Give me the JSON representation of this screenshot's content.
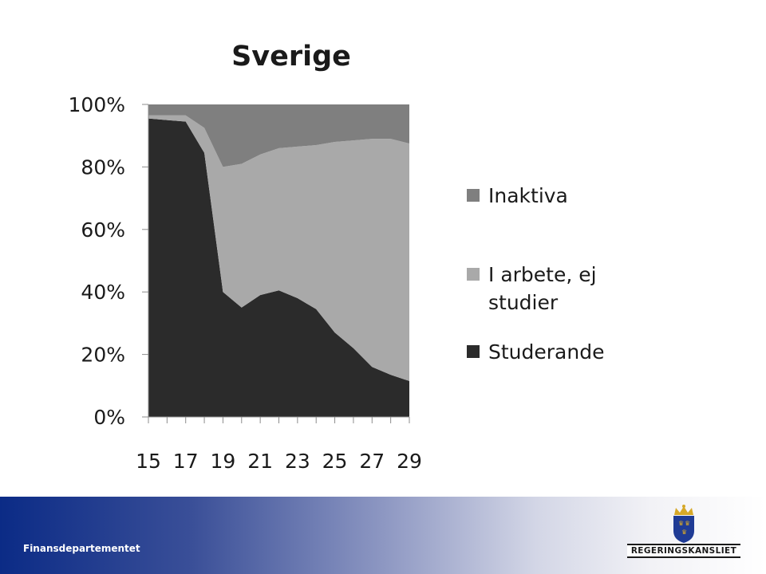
{
  "chart_data": {
    "type": "area",
    "stacked": true,
    "percent": true,
    "title": "Sverige",
    "x": [
      15,
      16,
      17,
      18,
      19,
      20,
      21,
      22,
      23,
      24,
      25,
      26,
      27,
      28,
      29
    ],
    "tick_labels": [
      "15",
      "17",
      "19",
      "21",
      "23",
      "25",
      "27",
      "29"
    ],
    "y_ticks": [
      "0%",
      "20%",
      "40%",
      "60%",
      "80%",
      "100%"
    ],
    "ylim": [
      0,
      100
    ],
    "legend_position": "right",
    "series": [
      {
        "name": "Studerande",
        "color": "#2b2b2b",
        "values": [
          95.5,
          95,
          94.5,
          84.5,
          40,
          35,
          39,
          40.5,
          38,
          34.5,
          27,
          22,
          16,
          13.5,
          11.5
        ]
      },
      {
        "name": "I arbete, ej studier",
        "color": "#a9a9a9",
        "values": [
          1,
          1.5,
          2,
          8,
          40,
          46,
          45,
          45.5,
          48.5,
          52.5,
          61,
          66.5,
          73,
          75.5,
          76
        ]
      },
      {
        "name": "Inaktiva",
        "color": "#7f7f7f",
        "values": [
          3.5,
          3.5,
          3.5,
          7.5,
          20,
          19,
          16,
          14,
          13.5,
          13,
          12,
          11.5,
          11,
          11,
          12.5
        ]
      }
    ],
    "legend_order": [
      "Inaktiva",
      "I arbete, ej studier",
      "Studerande"
    ]
  },
  "footer": {
    "department": "Finansdepartementet",
    "logo_text": "REGERINGSKANSLIET"
  },
  "colors": {
    "footer_left": "#0b2b86",
    "footer_right": "#ffffff",
    "crown_gold": "#d6a829",
    "shield_blue": "#1f3b95"
  }
}
